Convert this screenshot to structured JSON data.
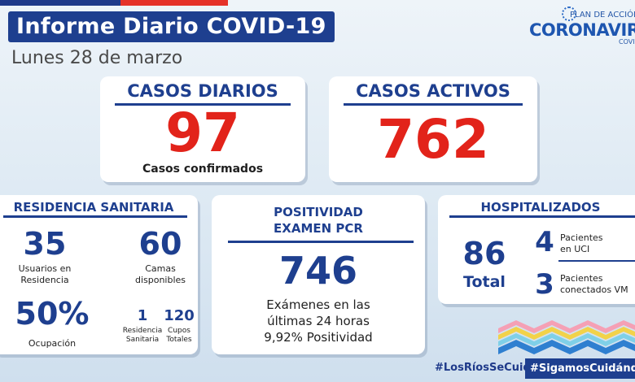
{
  "header": {
    "title": "Informe Diario COVID-19",
    "date": "Lunes 28 de marzo"
  },
  "logo": {
    "plan": "PLAN DE ACCIÓN",
    "name": "CORONAVIRUS",
    "sub": "COVID"
  },
  "casos_diarios": {
    "title": "CASOS DIARIOS",
    "value": "97",
    "label": "Casos confirmados"
  },
  "casos_activos": {
    "title": "CASOS ACTIVOS",
    "value": "762"
  },
  "residencia": {
    "title": "RESIDENCIA SANITARIA",
    "usuarios_value": "35",
    "usuarios_label_1": "Usuarios en",
    "usuarios_label_2": "Residencia",
    "camas_value": "60",
    "camas_label_1": "Camas",
    "camas_label_2": "disponibles",
    "ocupacion_value": "50%",
    "ocupacion_label": "Ocupación",
    "residencias_value": "1",
    "residencias_label_1": "Residencia",
    "residencias_label_2": "Sanitaria",
    "cupos_value": "120",
    "cupos_label_1": "Cupos",
    "cupos_label_2": "Totales"
  },
  "positividad": {
    "title_1": "POSITIVIDAD",
    "title_2": "EXAMEN PCR",
    "value": "746",
    "line_1": "Exámenes en las",
    "line_2": "últimas 24 horas",
    "line_3": "9,92% Positividad"
  },
  "hospitalizados": {
    "title": "HOSPITALIZADOS",
    "total_value": "86",
    "total_label": "Total",
    "uci_value": "4",
    "uci_label_1": "Pacientes",
    "uci_label_2": "en UCI",
    "vm_value": "3",
    "vm_label_1": "Pacientes",
    "vm_label_2": "conectados VM"
  },
  "footer": {
    "hashtag_1": "#LosRíosSeCuida",
    "hashtag_2": "#SigamosCuidándonos"
  },
  "colors": {
    "brand_blue": "#1e3f8f",
    "accent_red": "#e2231a"
  }
}
